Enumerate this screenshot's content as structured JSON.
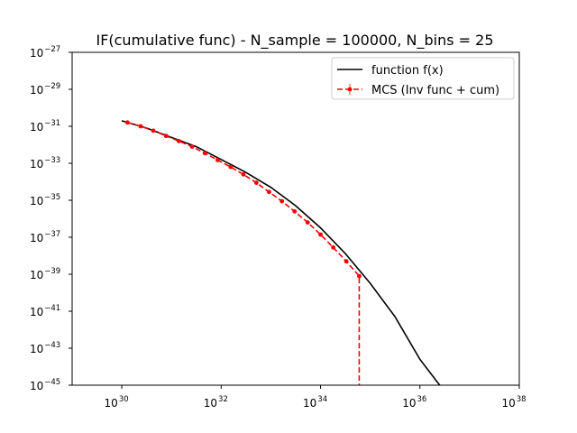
{
  "chart_data": {
    "type": "line",
    "title": "IF(cumulative func) - N_sample = 100000, N_bins = 25",
    "xlabel": "",
    "ylabel": "",
    "xscale": "log",
    "yscale": "log",
    "xlim": [
      1e+29,
      1e+38
    ],
    "ylim": [
      1e-45,
      1e-27
    ],
    "x_ticks": [
      {
        "base": "10",
        "exp": "30",
        "value": 1e+30
      },
      {
        "base": "10",
        "exp": "32",
        "value": 1e+32
      },
      {
        "base": "10",
        "exp": "34",
        "value": 1e+34
      },
      {
        "base": "10",
        "exp": "36",
        "value": 1e+36
      },
      {
        "base": "10",
        "exp": "38",
        "value": 1e+38
      }
    ],
    "y_ticks": [
      {
        "base": "10",
        "exp": "−27",
        "value": 1e-27
      },
      {
        "base": "10",
        "exp": "−29",
        "value": 1e-29
      },
      {
        "base": "10",
        "exp": "−31",
        "value": 1e-31
      },
      {
        "base": "10",
        "exp": "−33",
        "value": 1e-33
      },
      {
        "base": "10",
        "exp": "−35",
        "value": 1e-35
      },
      {
        "base": "10",
        "exp": "−37",
        "value": 1e-37
      },
      {
        "base": "10",
        "exp": "−39",
        "value": 1e-39
      },
      {
        "base": "10",
        "exp": "−41",
        "value": 1e-41
      },
      {
        "base": "10",
        "exp": "−43",
        "value": 1e-43
      },
      {
        "base": "10",
        "exp": "−45",
        "value": 1e-45
      }
    ],
    "grid": false,
    "legend": "top-right",
    "series": [
      {
        "name": "function f(x)",
        "style": "solid",
        "color": "#000000",
        "x": [
          1e+30,
          3.16e+30,
          1e+31,
          3.16e+31,
          1e+32,
          3.16e+32,
          1e+33,
          3.16e+33,
          1e+34,
          3.16e+34,
          1e+35,
          3.16e+35,
          1e+36,
          2.5e+36
        ],
        "y": [
          2e-31,
          8e-32,
          2.5e-32,
          7.9e-33,
          1.6e-33,
          3.2e-34,
          5e-35,
          5e-36,
          3.2e-37,
          1.3e-38,
          3.2e-40,
          5e-42,
          2.5e-44,
          1e-45
        ]
      },
      {
        "name": "MCS (Inv func + cum)",
        "style": "dashed",
        "marker": "circle",
        "color": "#ff0000",
        "x": [
          1.3e+30,
          2.4e+30,
          4.3e+30,
          7.8e+30,
          1.4e+31,
          2.6e+31,
          4.7e+31,
          8.5e+31,
          1.55e+32,
          2.8e+32,
          5.1e+32,
          9.2e+32,
          1.67e+33,
          3e+33,
          5.5e+33,
          1e+34,
          1.8e+34,
          3.3e+34,
          6e+34
        ],
        "y": [
          1.6e-31,
          1e-31,
          5.8e-32,
          3e-32,
          1.6e-32,
          7.9e-33,
          3.5e-33,
          1.5e-33,
          6.3e-34,
          2.5e-34,
          8.9e-35,
          2.8e-35,
          8.9e-36,
          2.5e-36,
          6.3e-37,
          1.4e-37,
          2.8e-38,
          5e-39,
          7.9e-40
        ],
        "drop_to_axis_at": 6e+34
      }
    ]
  }
}
